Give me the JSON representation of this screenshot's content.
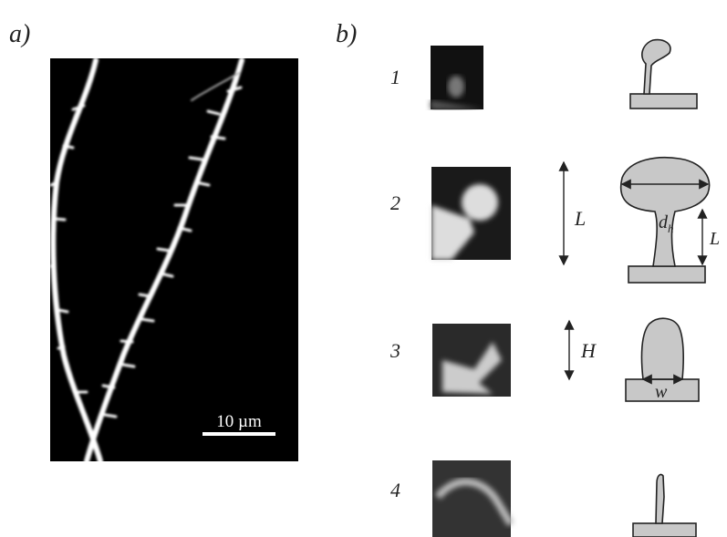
{
  "panel_a": {
    "label": "a)",
    "scale_bar": "10 µm"
  },
  "panel_b": {
    "label": "b)",
    "rows": [
      {
        "number": "1"
      },
      {
        "number": "2"
      },
      {
        "number": "3"
      },
      {
        "number": "4"
      }
    ],
    "length_label": "L",
    "height_label": "H",
    "head_diameter": {
      "base": "d",
      "sub": "h"
    },
    "neck_length_label": "L",
    "width_label": "w"
  }
}
